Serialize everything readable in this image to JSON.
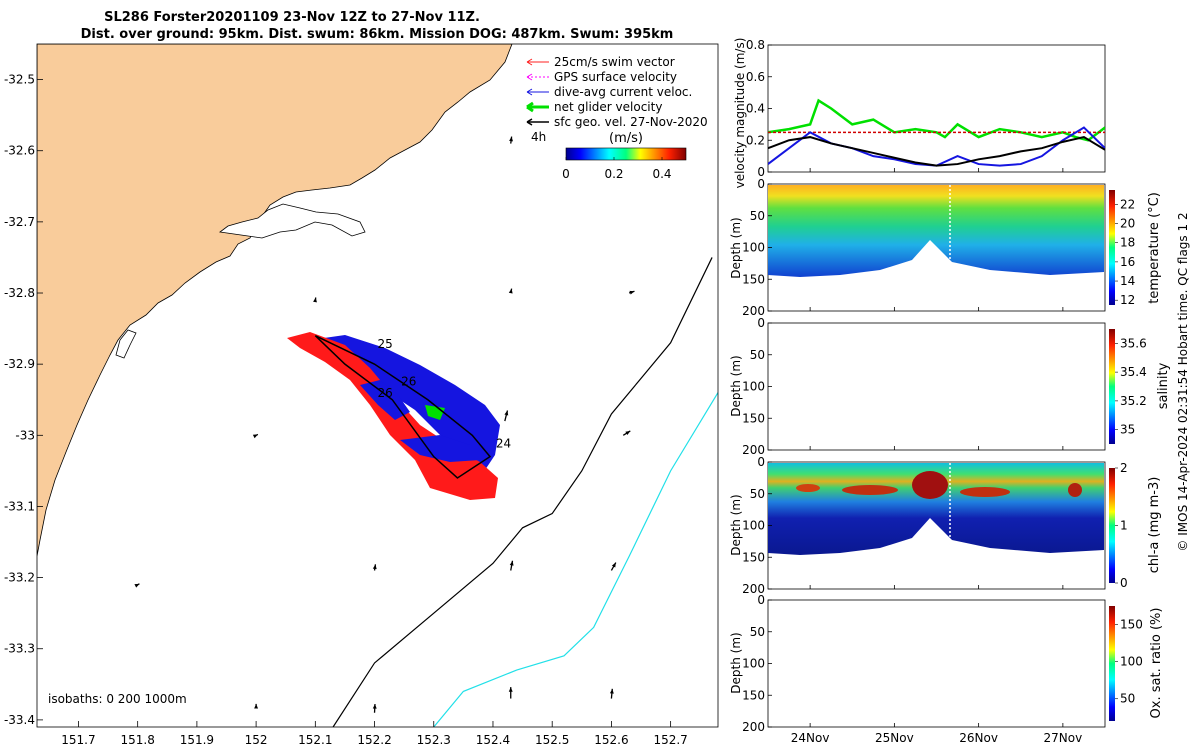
{
  "title_lines": [
    "SL286 Forster20201109 23-Nov 12Z to 27-Nov 11Z.",
    "Dist. over ground: 95km. Dist. swum: 86km. Mission DOG: 487km. Swum: 395km"
  ],
  "credit": "© IMOS 14-Apr-2024 02:31:54 Hobart time. QC flags 1  2",
  "colors": {
    "land": "#f9cc9b",
    "swim": "#ff2020",
    "gps": "#ff00ff",
    "current": "#1515e0",
    "net": "#00e000",
    "sfc": "#000000",
    "isobath200": "#000000",
    "isobath1000": "#22e0e8"
  },
  "chart_data": [
    {
      "type": "map",
      "x_ticks": [
        "151.7",
        "151.8",
        "151.9",
        "152",
        "152.1",
        "152.2",
        "152.3",
        "152.4",
        "152.5",
        "152.6",
        "152.7"
      ],
      "y_ticks": [
        "-32.5",
        "-32.6",
        "-32.7",
        "-32.8",
        "-32.9",
        "-33",
        "-33.1",
        "-33.2",
        "-33.3",
        "-33.4"
      ],
      "xlim": [
        151.63,
        152.78
      ],
      "ylim": [
        -33.41,
        -32.45
      ],
      "legend": {
        "placement": "top-right",
        "entries": [
          "25cm/s swim vector",
          "GPS surface velocity",
          "dive-avg current veloc.",
          "net glider velocity",
          "sfc geo. vel. 27-Nov-2020"
        ],
        "time_label": "4h"
      },
      "colorbar": {
        "label": "(m/s)",
        "ticks": [
          "0",
          "0.2",
          "0.4"
        ],
        "range": [
          0,
          0.5
        ]
      },
      "track_labels": [
        {
          "text": "25",
          "lon": 152.205,
          "lat": -32.877
        },
        {
          "text": "26",
          "lon": 152.205,
          "lat": -32.946
        },
        {
          "text": "24",
          "lon": 152.405,
          "lat": -33.017
        },
        {
          "text": "26",
          "lon": 152.245,
          "lat": -32.93
        }
      ],
      "track": [
        {
          "lon": 152.1,
          "lat": -32.86
        },
        {
          "lon": 152.2,
          "lat": -32.9
        },
        {
          "lon": 152.29,
          "lat": -32.95
        },
        {
          "lon": 152.365,
          "lat": -33.0
        },
        {
          "lon": 152.395,
          "lat": -33.03
        },
        {
          "lon": 152.34,
          "lat": -33.06
        },
        {
          "lon": 152.3,
          "lat": -33.03
        },
        {
          "lon": 152.23,
          "lat": -32.95
        },
        {
          "lon": 152.15,
          "lat": -32.9
        },
        {
          "lon": 152.1,
          "lat": -32.86
        }
      ],
      "isobaths_label": "isobaths: 0   200  1000m",
      "isobath_200": [
        [
          152.13,
          -33.41
        ],
        [
          152.2,
          -33.32
        ],
        [
          152.3,
          -33.25
        ],
        [
          152.4,
          -33.18
        ],
        [
          152.45,
          -33.13
        ],
        [
          152.5,
          -33.11
        ],
        [
          152.55,
          -33.05
        ],
        [
          152.6,
          -32.97
        ],
        [
          152.7,
          -32.87
        ],
        [
          152.77,
          -32.75
        ]
      ],
      "isobath_1000": [
        [
          152.3,
          -33.41
        ],
        [
          152.35,
          -33.36
        ],
        [
          152.44,
          -33.33
        ],
        [
          152.52,
          -33.31
        ],
        [
          152.57,
          -33.27
        ],
        [
          152.63,
          -33.17
        ],
        [
          152.7,
          -33.05
        ],
        [
          152.78,
          -32.94
        ]
      ],
      "sfc_vectors": [
        {
          "lon": 152.43,
          "lat": -32.59,
          "u": 0.01,
          "v": 0.08
        },
        {
          "lon": 152.1,
          "lat": -32.81,
          "u": 0.005,
          "v": 0.03
        },
        {
          "lon": 152.43,
          "lat": -32.8,
          "u": 0.01,
          "v": 0.05
        },
        {
          "lon": 152.63,
          "lat": -32.8,
          "u": 0.06,
          "v": 0.02
        },
        {
          "lon": 152.42,
          "lat": -32.98,
          "u": 0.03,
          "v": 0.12
        },
        {
          "lon": 152.62,
          "lat": -33.0,
          "u": 0.08,
          "v": 0.05
        },
        {
          "lon": 152.0,
          "lat": -33.0,
          "u": 0.02,
          "v": 0.01
        },
        {
          "lon": 152.2,
          "lat": -33.19,
          "u": 0.01,
          "v": 0.07
        },
        {
          "lon": 152.43,
          "lat": -33.19,
          "u": 0.02,
          "v": 0.11
        },
        {
          "lon": 152.6,
          "lat": -33.19,
          "u": 0.05,
          "v": 0.09
        },
        {
          "lon": 151.8,
          "lat": -33.21,
          "u": 0.02,
          "v": 0.01
        },
        {
          "lon": 152.2,
          "lat": -33.39,
          "u": 0.005,
          "v": 0.1
        },
        {
          "lon": 152.43,
          "lat": -33.37,
          "u": 0.0,
          "v": 0.13
        },
        {
          "lon": 152.6,
          "lat": -33.37,
          "u": 0.01,
          "v": 0.11
        },
        {
          "lon": 152.0,
          "lat": -33.38,
          "u": 0.0,
          "v": 0.02
        }
      ]
    },
    {
      "type": "line",
      "ylabel": "velocity magnitude (m/s)",
      "ylim": [
        0,
        0.8
      ],
      "y_ticks": [
        "0",
        "0.2",
        "0.4",
        "0.6",
        "0.8"
      ],
      "xlim": [
        23.5,
        27.5
      ],
      "series": [
        {
          "color": "#00e000",
          "x": [
            23.5,
            23.75,
            24.0,
            24.1,
            24.25,
            24.5,
            24.75,
            25.0,
            25.25,
            25.5,
            25.6,
            25.75,
            26.0,
            26.25,
            26.5,
            26.75,
            27.0,
            27.15,
            27.3,
            27.5
          ],
          "y": [
            0.25,
            0.27,
            0.3,
            0.45,
            0.4,
            0.3,
            0.33,
            0.25,
            0.27,
            0.25,
            0.22,
            0.3,
            0.22,
            0.27,
            0.25,
            0.22,
            0.25,
            0.22,
            0.2,
            0.28
          ]
        },
        {
          "color": "#d00000",
          "x": [
            23.5,
            27.5
          ],
          "y": [
            0.25,
            0.25
          ]
        },
        {
          "color": "#1515e0",
          "x": [
            23.5,
            23.75,
            24.0,
            24.25,
            24.5,
            24.75,
            25.0,
            25.25,
            25.5,
            25.75,
            26.0,
            26.25,
            26.5,
            26.75,
            27.0,
            27.25,
            27.5
          ],
          "y": [
            0.05,
            0.15,
            0.25,
            0.18,
            0.15,
            0.1,
            0.08,
            0.05,
            0.04,
            0.1,
            0.05,
            0.04,
            0.05,
            0.1,
            0.2,
            0.28,
            0.15
          ]
        },
        {
          "color": "#000000",
          "x": [
            23.5,
            23.75,
            24.0,
            24.25,
            24.5,
            24.75,
            25.0,
            25.25,
            25.5,
            25.75,
            26.0,
            26.25,
            26.5,
            26.75,
            27.0,
            27.25,
            27.5
          ],
          "y": [
            0.15,
            0.2,
            0.22,
            0.18,
            0.15,
            0.12,
            0.09,
            0.06,
            0.04,
            0.05,
            0.08,
            0.1,
            0.13,
            0.15,
            0.19,
            0.22,
            0.14
          ]
        }
      ]
    },
    {
      "type": "heatmap",
      "ylabel": "Depth (m)",
      "cblabel": "temperature (°C)",
      "ylim": [
        0,
        200
      ],
      "y_ticks": [
        "0",
        "50",
        "100",
        "150",
        "200"
      ],
      "cb_ticks": [
        "12",
        "14",
        "16",
        "18",
        "20",
        "22"
      ],
      "cb_range": [
        11.5,
        23.5
      ],
      "surface_value": 22.5,
      "bottom_value": 13.5
    },
    {
      "type": "heatmap",
      "ylabel": "Depth (m)",
      "cblabel": "salinity",
      "ylim": [
        0,
        200
      ],
      "y_ticks": [
        "0",
        "50",
        "100",
        "150",
        "200"
      ],
      "cb_ticks": [
        "35",
        "35.2",
        "35.4",
        "35.6"
      ],
      "cb_range": [
        34.9,
        35.7
      ]
    },
    {
      "type": "heatmap",
      "ylabel": "Depth (m)",
      "cblabel": "chl-a (mg m-3)",
      "ylim": [
        0,
        200
      ],
      "y_ticks": [
        "0",
        "50",
        "100",
        "150",
        "200"
      ],
      "cb_ticks": [
        "0",
        "1",
        "2"
      ],
      "cb_range": [
        0,
        2
      ],
      "max_depth_m": 45,
      "surface_value": 0.6,
      "peak_value": 2.0
    },
    {
      "type": "heatmap",
      "ylabel": "Depth (m)",
      "cblabel": "Ox. sat. ratio (%)",
      "ylim": [
        0,
        200
      ],
      "y_ticks": [
        "0",
        "50",
        "100",
        "150",
        "200"
      ],
      "cb_ticks": [
        "50",
        "100",
        "150"
      ],
      "cb_range": [
        20,
        175
      ],
      "x_ticks": [
        "24Nov",
        "25Nov",
        "26Nov",
        "27Nov"
      ]
    }
  ]
}
